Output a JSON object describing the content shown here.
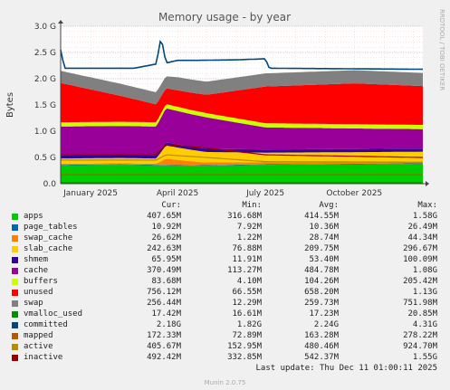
{
  "chart_data": {
    "type": "area",
    "title": "Memory usage - by year",
    "ylabel": "Bytes",
    "ylim": [
      0,
      3.0
    ],
    "y_unit": "G",
    "y_ticks": [
      "0.0",
      "0.5 G",
      "1.0 G",
      "1.5 G",
      "2.0 G",
      "2.5 G",
      "3.0 G"
    ],
    "x_range": [
      "2024-12-01",
      "2025-12-11"
    ],
    "x_ticks": [
      {
        "label": "January 2025",
        "date": "2025-01-01"
      },
      {
        "label": "April 2025",
        "date": "2025-04-01"
      },
      {
        "label": "July 2025",
        "date": "2025-07-01"
      },
      {
        "label": "October 2025",
        "date": "2025-10-01"
      }
    ],
    "grid": true,
    "vertical_label": "RRDTOOL / TOBI OETIKER",
    "series": [
      {
        "name": "apps",
        "color": "#00cc00",
        "stack": true,
        "x": [
          "2024-12-01",
          "2025-02-01",
          "2025-03-10",
          "2025-04-15",
          "2025-07-01",
          "2025-10-01",
          "2025-12-11"
        ],
        "values": [
          0.35,
          0.36,
          0.35,
          0.34,
          0.36,
          0.37,
          0.38
        ]
      },
      {
        "name": "page_tables",
        "color": "#0066b3",
        "stack": true,
        "x": [
          "2024-12-01",
          "2025-12-11"
        ],
        "values": [
          0.01,
          0.01
        ]
      },
      {
        "name": "swap_cache",
        "color": "#ff8000",
        "stack": true,
        "x": [
          "2024-12-01",
          "2025-03-10",
          "2025-03-20",
          "2025-05-01",
          "2025-12-11"
        ],
        "values": [
          0.02,
          0.02,
          0.12,
          0.05,
          0.02
        ]
      },
      {
        "name": "slab_cache",
        "color": "#ffcc00",
        "stack": true,
        "x": [
          "2024-12-01",
          "2025-03-10",
          "2025-03-20",
          "2025-05-01",
          "2025-07-01",
          "2025-12-11"
        ],
        "values": [
          0.1,
          0.1,
          0.25,
          0.2,
          0.18,
          0.2
        ]
      },
      {
        "name": "shmem",
        "color": "#330099",
        "stack": true,
        "x": [
          "2024-12-01",
          "2025-12-11"
        ],
        "values": [
          0.06,
          0.06
        ]
      },
      {
        "name": "cache",
        "color": "#990099",
        "stack": true,
        "x": [
          "2024-12-01",
          "2025-03-10",
          "2025-03-20",
          "2025-05-01",
          "2025-07-01",
          "2025-12-11"
        ],
        "values": [
          0.55,
          0.55,
          0.65,
          0.6,
          0.42,
          0.37
        ]
      },
      {
        "name": "buffers",
        "color": "#ccff00",
        "stack": true,
        "x": [
          "2024-12-01",
          "2025-12-11"
        ],
        "values": [
          0.08,
          0.08
        ]
      },
      {
        "name": "unused",
        "color": "#ff0000",
        "stack": true,
        "x": [
          "2024-12-01",
          "2025-03-20",
          "2025-05-01",
          "2025-07-01",
          "2025-10-01",
          "2025-12-11"
        ],
        "values": [
          0.75,
          0.3,
          0.35,
          0.7,
          0.78,
          0.74
        ]
      },
      {
        "name": "swap",
        "color": "#808080",
        "stack": true,
        "x": [
          "2024-12-01",
          "2025-03-20",
          "2025-04-01",
          "2025-12-11"
        ],
        "values": [
          0.23,
          0.23,
          0.25,
          0.25
        ]
      },
      {
        "name": "vmalloc_used",
        "color": "#008f00",
        "stack": false,
        "x": [
          "2024-12-01",
          "2025-12-11"
        ],
        "values": [
          0.02,
          0.02
        ]
      },
      {
        "name": "committed",
        "color": "#00487d",
        "stack": false,
        "x": [
          "2024-12-01",
          "2024-12-05",
          "2025-02-15",
          "2025-03-10",
          "2025-03-15",
          "2025-03-20",
          "2025-04-01",
          "2025-04-20",
          "2025-06-01",
          "2025-07-01",
          "2025-07-05",
          "2025-12-11"
        ],
        "values": [
          2.55,
          2.2,
          2.2,
          2.28,
          2.8,
          2.3,
          2.35,
          2.35,
          2.36,
          2.38,
          2.2,
          2.18
        ]
      },
      {
        "name": "mapped",
        "color": "#b35a00",
        "stack": false,
        "x": [
          "2024-12-01",
          "2025-12-11"
        ],
        "values": [
          0.17,
          0.17
        ]
      },
      {
        "name": "active",
        "color": "#b38f00",
        "stack": false,
        "x": [
          "2024-12-01",
          "2025-03-10",
          "2025-03-20",
          "2025-05-01",
          "2025-07-01",
          "2025-12-11"
        ],
        "values": [
          0.45,
          0.45,
          0.55,
          0.5,
          0.42,
          0.41
        ]
      },
      {
        "name": "inactive",
        "color": "#990000",
        "stack": false,
        "x": [
          "2024-12-01",
          "2025-03-10",
          "2025-03-20",
          "2025-05-01",
          "2025-07-01",
          "2025-12-11"
        ],
        "values": [
          0.55,
          0.55,
          0.75,
          0.68,
          0.55,
          0.5
        ]
      }
    ]
  },
  "legend": {
    "headers": [
      "Cur:",
      "Min:",
      "Avg:",
      "Max:"
    ],
    "rows": [
      {
        "name": "apps",
        "color": "#00cc00",
        "cur": "407.65M",
        "min": "316.68M",
        "avg": "414.55M",
        "max": "1.58G"
      },
      {
        "name": "page_tables",
        "color": "#0066b3",
        "cur": "10.92M",
        "min": "7.92M",
        "avg": "10.36M",
        "max": "26.49M"
      },
      {
        "name": "swap_cache",
        "color": "#ff8000",
        "cur": "26.62M",
        "min": "1.22M",
        "avg": "28.74M",
        "max": "44.34M"
      },
      {
        "name": "slab_cache",
        "color": "#ffcc00",
        "cur": "242.63M",
        "min": "76.88M",
        "avg": "209.75M",
        "max": "296.67M"
      },
      {
        "name": "shmem",
        "color": "#330099",
        "cur": "65.95M",
        "min": "11.91M",
        "avg": "53.40M",
        "max": "100.09M"
      },
      {
        "name": "cache",
        "color": "#990099",
        "cur": "370.49M",
        "min": "113.27M",
        "avg": "484.78M",
        "max": "1.08G"
      },
      {
        "name": "buffers",
        "color": "#ccff00",
        "cur": "83.68M",
        "min": "4.10M",
        "avg": "104.26M",
        "max": "205.42M"
      },
      {
        "name": "unused",
        "color": "#ff0000",
        "cur": "756.12M",
        "min": "66.55M",
        "avg": "658.20M",
        "max": "1.13G"
      },
      {
        "name": "swap",
        "color": "#808080",
        "cur": "256.44M",
        "min": "12.29M",
        "avg": "259.73M",
        "max": "751.98M"
      },
      {
        "name": "vmalloc_used",
        "color": "#008f00",
        "cur": "17.42M",
        "min": "16.61M",
        "avg": "17.23M",
        "max": "20.85M"
      },
      {
        "name": "committed",
        "color": "#00487d",
        "cur": "2.18G",
        "min": "1.82G",
        "avg": "2.24G",
        "max": "4.31G"
      },
      {
        "name": "mapped",
        "color": "#b35a00",
        "cur": "172.33M",
        "min": "72.89M",
        "avg": "163.28M",
        "max": "278.22M"
      },
      {
        "name": "active",
        "color": "#b38f00",
        "cur": "405.67M",
        "min": "152.95M",
        "avg": "480.46M",
        "max": "924.70M"
      },
      {
        "name": "inactive",
        "color": "#990000",
        "cur": "492.42M",
        "min": "332.85M",
        "avg": "542.37M",
        "max": "1.55G"
      }
    ]
  },
  "last_update": "Last update: Thu Dec 11 01:00:11 2025",
  "footer": "Munin 2.0.75"
}
